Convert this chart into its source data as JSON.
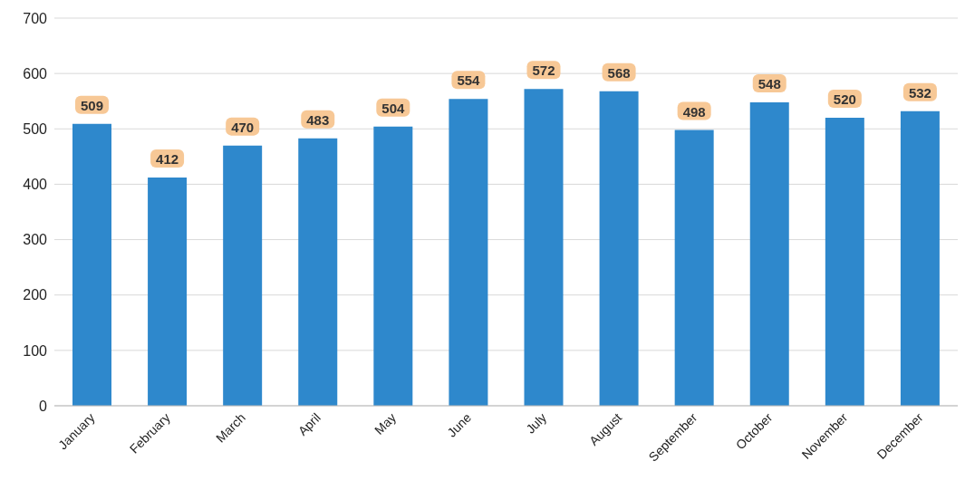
{
  "chart_data": {
    "type": "bar",
    "categories": [
      "January",
      "February",
      "March",
      "April",
      "May",
      "June",
      "July",
      "August",
      "September",
      "October",
      "November",
      "December"
    ],
    "values": [
      509,
      412,
      470,
      483,
      504,
      554,
      572,
      568,
      498,
      548,
      520,
      532
    ],
    "color": "#2e88cc",
    "ylim": [
      0,
      700
    ],
    "yticks": [
      0,
      100,
      200,
      300,
      400,
      500,
      600,
      700
    ],
    "grid": "y",
    "data_labels": true
  }
}
